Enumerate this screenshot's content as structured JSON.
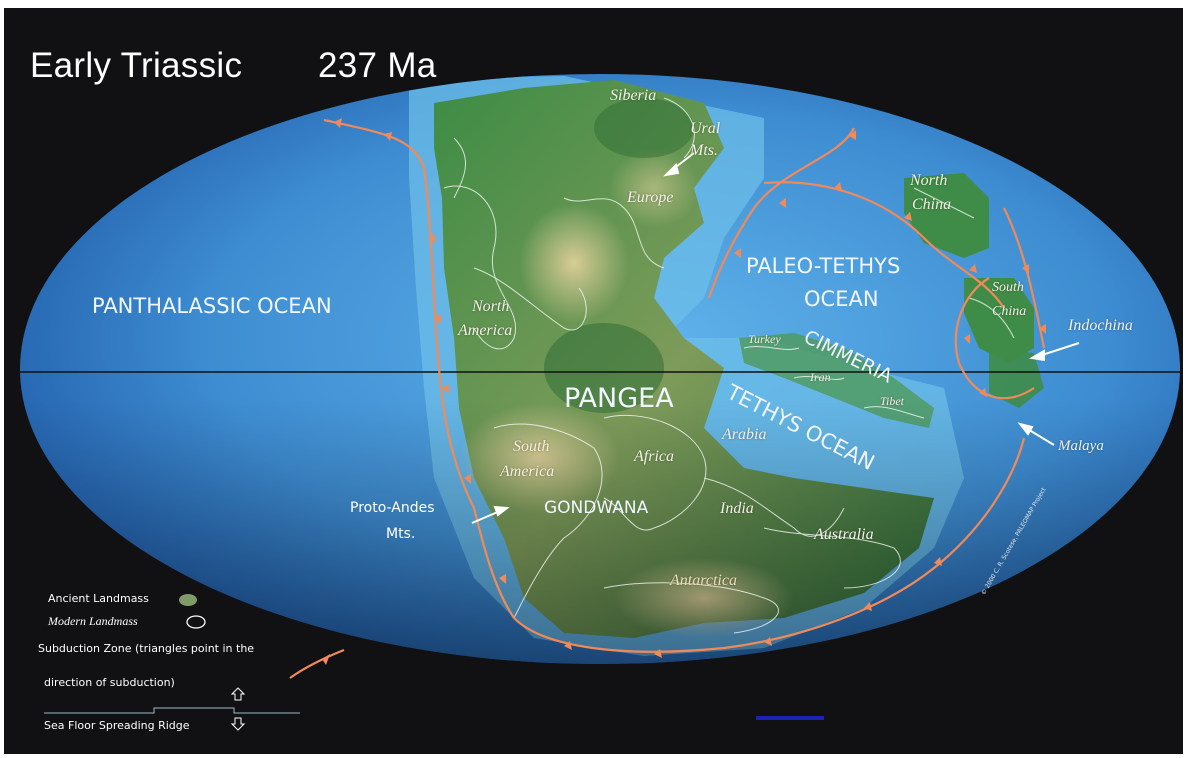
{
  "title": {
    "period": "Early Triassic",
    "age": "237 Ma"
  },
  "oceans": {
    "panthalassic": "PANTHALASSIC OCEAN",
    "paleo_tethys_line1": "PALEO-TETHYS",
    "paleo_tethys_line2": "OCEAN",
    "tethys": "TETHYS OCEAN"
  },
  "supercontinents": {
    "pangea": "PANGEA",
    "gondwana": "GONDWANA",
    "cimmeria": "CIMMERIA"
  },
  "regions": {
    "siberia": "Siberia",
    "ural_line1": "Ural",
    "ural_line2": "Mts.",
    "europe": "Europe",
    "north_america_line1": "North",
    "north_america_line2": "America",
    "north_china_line1": "North",
    "north_china_line2": "China",
    "south_china_line1": "South",
    "south_china_line2": "China",
    "indochina": "Indochina",
    "turkey": "Turkey",
    "iran": "Iran",
    "tibet": "Tibet",
    "malaya": "Malaya",
    "arabia": "Arabia",
    "south_america_line1": "South",
    "south_america_line2": "America",
    "africa": "Africa",
    "india": "India",
    "australia": "Australia",
    "antarctica": "Antarctica",
    "proto_andes_line1": "Proto-Andes",
    "proto_andes_line2": "Mts."
  },
  "legend": {
    "ancient_landmass": "Ancient Landmass",
    "modern_landmass": "Modern Landmass",
    "subduction_line1": "Subduction Zone  (triangles point in the",
    "subduction_line2": "direction of subduction)",
    "spreading_ridge": "Sea Floor Spreading Ridge"
  },
  "credit": "© 2000   C. R. Scotese, PALEOMAP Project",
  "colors": {
    "background": "#111114",
    "ocean_deep": "#1f5fb0",
    "ocean_light": "#5aa8e0",
    "land_green": "#2f7a3a",
    "land_tan": "#c9c28a",
    "subduction": "#f08a5a"
  }
}
